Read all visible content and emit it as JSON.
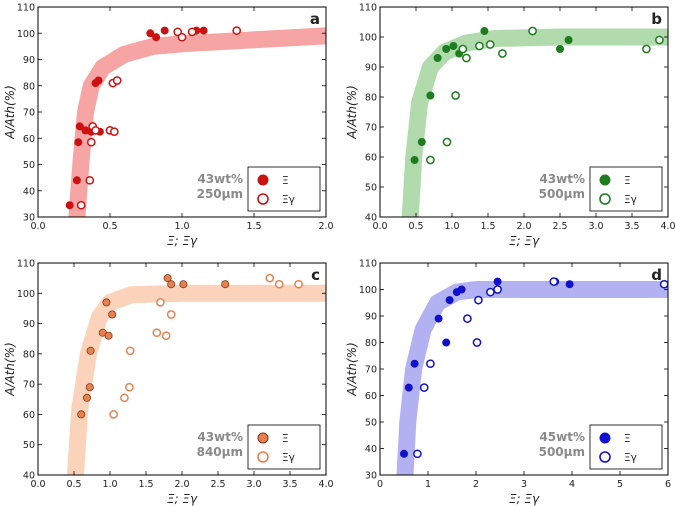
{
  "chart_data": [
    {
      "type": "scatter",
      "panel": "a",
      "xlabel": "Ξ; Ξγ",
      "ylabel": "A/Ath(%)",
      "xlim": [
        0,
        2.0
      ],
      "ylim": [
        30,
        110
      ],
      "xticks": [
        "0.0",
        "0.5",
        "1.0",
        "1.5",
        "2.0"
      ],
      "yticks": [
        "30",
        "40",
        "50",
        "60",
        "70",
        "80",
        "90",
        "100",
        "110"
      ],
      "annotation": [
        "43wt%",
        "250μm"
      ],
      "color": "#cc1111",
      "band_color": "#f59a9a",
      "band": [
        [
          0.27,
          30
        ],
        [
          0.3,
          52
        ],
        [
          0.33,
          70
        ],
        [
          0.37,
          80
        ],
        [
          0.45,
          87
        ],
        [
          0.6,
          92
        ],
        [
          0.8,
          95
        ],
        [
          1.0,
          96
        ],
        [
          1.5,
          97.5
        ],
        [
          2.0,
          99
        ]
      ],
      "series": [
        {
          "name": "Ξ",
          "fill": "filled",
          "x": [
            0.22,
            0.27,
            0.28,
            0.29,
            0.33,
            0.37,
            0.4,
            0.42,
            0.43,
            0.78,
            0.82,
            0.88,
            1.1,
            1.15
          ],
          "y": [
            34.5,
            44,
            58.5,
            64.5,
            63,
            62.5,
            81,
            82,
            62.5,
            100,
            98.5,
            101,
            101,
            101
          ]
        },
        {
          "name": "Ξγ",
          "fill": "open",
          "x": [
            0.3,
            0.36,
            0.37,
            0.38,
            0.4,
            0.5,
            0.52,
            0.53,
            0.55,
            0.97,
            1.0,
            1.07,
            1.38
          ],
          "y": [
            34.5,
            44,
            58.5,
            64.5,
            63,
            63,
            81,
            62.5,
            82,
            100.5,
            98.5,
            100.5,
            101
          ]
        }
      ]
    },
    {
      "type": "scatter",
      "panel": "b",
      "xlabel": "Ξ; Ξγ",
      "ylabel": "A/Ath(%)",
      "xlim": [
        0,
        4.0
      ],
      "ylim": [
        40,
        110
      ],
      "xticks": [
        "0.0",
        "0.5",
        "1.0",
        "1.5",
        "2.0",
        "2.5",
        "3.0",
        "3.5",
        "4.0"
      ],
      "yticks": [
        "40",
        "50",
        "60",
        "70",
        "80",
        "90",
        "100",
        "110"
      ],
      "annotation": [
        "43wt%",
        "500μm"
      ],
      "color": "#1e7d1e",
      "band_color": "#a9d6a4",
      "band": [
        [
          0.42,
          40
        ],
        [
          0.47,
          60
        ],
        [
          0.55,
          78
        ],
        [
          0.7,
          90
        ],
        [
          0.9,
          95
        ],
        [
          1.2,
          98
        ],
        [
          1.6,
          99.5
        ],
        [
          2.5,
          100
        ],
        [
          4.0,
          100
        ]
      ],
      "series": [
        {
          "name": "Ξ",
          "fill": "filled",
          "x": [
            0.48,
            0.58,
            0.7,
            0.8,
            0.92,
            1.02,
            1.1,
            1.45,
            2.5,
            2.62
          ],
          "y": [
            59,
            65,
            80.5,
            93,
            96,
            97,
            94.5,
            102,
            96,
            99
          ]
        },
        {
          "name": "Ξγ",
          "fill": "open",
          "x": [
            0.7,
            0.93,
            1.05,
            1.15,
            1.2,
            1.38,
            1.53,
            1.7,
            2.12,
            3.7,
            3.88
          ],
          "y": [
            59,
            65,
            80.5,
            96,
            93,
            97,
            97.5,
            94.5,
            102,
            96,
            99
          ]
        }
      ]
    },
    {
      "type": "scatter",
      "panel": "c",
      "xlabel": "Ξ; Ξγ",
      "ylabel": "A/Ath(%)",
      "xlim": [
        0,
        4.0
      ],
      "ylim": [
        40,
        110
      ],
      "xticks": [
        "0.0",
        "0.5",
        "1.0",
        "1.5",
        "2.0",
        "2.5",
        "3.0",
        "3.5",
        "4.0"
      ],
      "yticks": [
        "40",
        "50",
        "60",
        "70",
        "80",
        "90",
        "100",
        "110"
      ],
      "annotation": [
        "43wt%",
        "840μm"
      ],
      "color": "#e88050",
      "band_color": "#fbcdb2",
      "band": [
        [
          0.52,
          40
        ],
        [
          0.58,
          62
        ],
        [
          0.7,
          80
        ],
        [
          0.85,
          92
        ],
        [
          1.0,
          97
        ],
        [
          1.3,
          99.5
        ],
        [
          2.0,
          100
        ],
        [
          4.0,
          100
        ]
      ],
      "series": [
        {
          "name": "Ξ",
          "fill": "filled",
          "x": [
            0.6,
            0.68,
            0.72,
            0.73,
            0.9,
            0.95,
            0.98,
            1.03,
            1.8,
            1.85,
            2.02,
            2.6
          ],
          "y": [
            60,
            65.5,
            69,
            81,
            87,
            97,
            86,
            93,
            105,
            103,
            103,
            103
          ]
        },
        {
          "name": "Ξγ",
          "fill": "open",
          "x": [
            1.05,
            1.2,
            1.27,
            1.28,
            1.65,
            1.7,
            1.78,
            1.85,
            3.22,
            3.35,
            3.62
          ],
          "y": [
            60,
            65.5,
            69,
            81,
            87,
            97,
            86,
            93,
            105,
            103,
            103
          ]
        }
      ]
    },
    {
      "type": "scatter",
      "panel": "d",
      "xlabel": "Ξ; Ξγ",
      "ylabel": "A/Ath(%)",
      "xlim": [
        0,
        6
      ],
      "ylim": [
        30,
        110
      ],
      "xticks": [
        "0",
        "1",
        "2",
        "3",
        "4",
        "5",
        "6"
      ],
      "yticks": [
        "30",
        "40",
        "50",
        "60",
        "70",
        "80",
        "90",
        "100",
        "110"
      ],
      "annotation": [
        "45wt%",
        "500μm"
      ],
      "color": "#1111cc",
      "band_color": "#aaaaf2",
      "band": [
        [
          0.52,
          30
        ],
        [
          0.58,
          50
        ],
        [
          0.7,
          70
        ],
        [
          0.9,
          85
        ],
        [
          1.2,
          95
        ],
        [
          1.6,
          99
        ],
        [
          2.0,
          100
        ],
        [
          3.0,
          100
        ],
        [
          6.0,
          100
        ]
      ],
      "series": [
        {
          "name": "Ξ",
          "fill": "filled",
          "x": [
            0.5,
            0.6,
            0.72,
            1.22,
            1.38,
            1.45,
            1.6,
            1.7,
            2.45,
            3.65,
            3.95
          ],
          "y": [
            38,
            63,
            72,
            89,
            80,
            96,
            99,
            100,
            103,
            103,
            102
          ]
        },
        {
          "name": "Ξγ",
          "fill": "open",
          "x": [
            0.78,
            0.92,
            1.05,
            1.82,
            2.02,
            2.05,
            2.3,
            2.45,
            3.62,
            5.92
          ],
          "y": [
            38,
            63,
            72,
            89,
            80,
            96,
            99,
            100,
            103,
            102
          ]
        }
      ]
    }
  ]
}
